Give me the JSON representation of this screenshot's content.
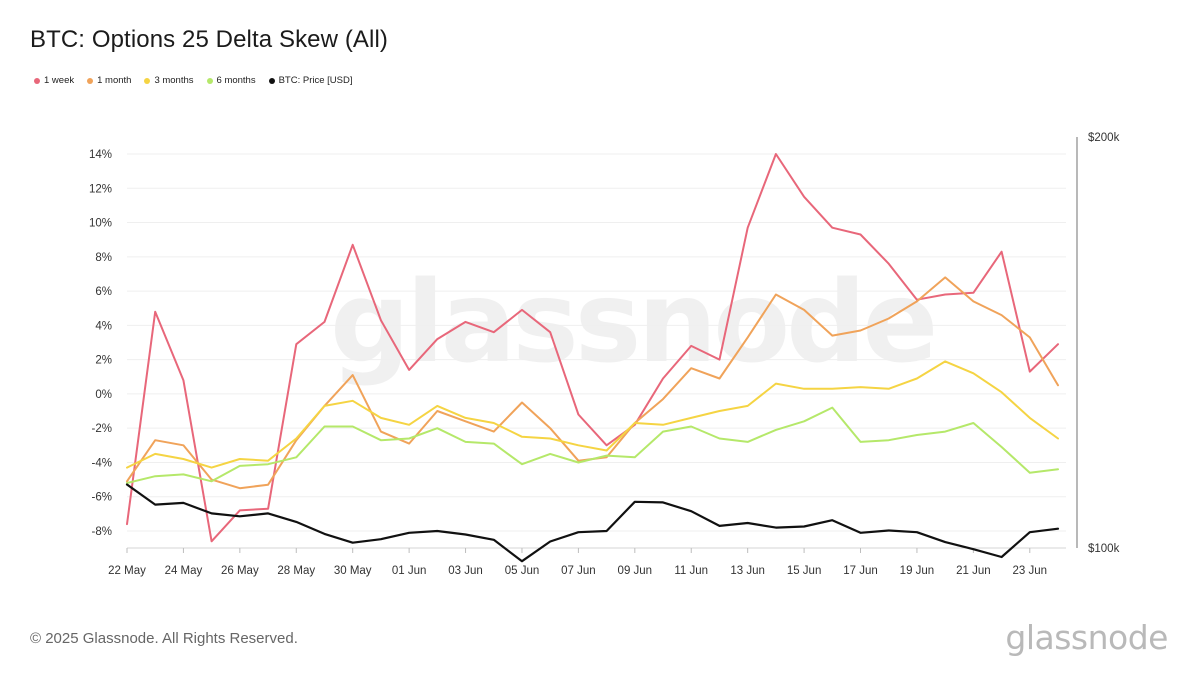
{
  "title": "BTC: Options 25 Delta Skew (All)",
  "footer": "© 2025 Glassnode. All Rights Reserved.",
  "logo_text": "glassnode",
  "watermark_text": "glassnode",
  "legend": [
    {
      "label": "1 week",
      "color": "#e8677a"
    },
    {
      "label": "1 month",
      "color": "#f0a35a"
    },
    {
      "label": "3 months",
      "color": "#f5d443"
    },
    {
      "label": "6 months",
      "color": "#b5e86a"
    },
    {
      "label": "BTC: Price [USD]",
      "color": "#111111"
    }
  ],
  "chart_data": {
    "type": "line",
    "x": [
      "22 May",
      "23 May",
      "24 May",
      "25 May",
      "26 May",
      "27 May",
      "28 May",
      "29 May",
      "30 May",
      "31 May",
      "01 Jun",
      "02 Jun",
      "03 Jun",
      "04 Jun",
      "05 Jun",
      "06 Jun",
      "07 Jun",
      "08 Jun",
      "09 Jun",
      "10 Jun",
      "11 Jun",
      "12 Jun",
      "13 Jun",
      "14 Jun",
      "15 Jun",
      "16 Jun",
      "17 Jun",
      "18 Jun",
      "19 Jun",
      "20 Jun",
      "21 Jun",
      "22 Jun",
      "23 Jun",
      "24 Jun"
    ],
    "x_tick_labels": [
      "22 May",
      "24 May",
      "26 May",
      "28 May",
      "30 May",
      "01 Jun",
      "03 Jun",
      "05 Jun",
      "07 Jun",
      "09 Jun",
      "11 Jun",
      "13 Jun",
      "15 Jun",
      "17 Jun",
      "19 Jun",
      "21 Jun",
      "23 Jun"
    ],
    "y_left": {
      "ticks": [
        "-8%",
        "-6%",
        "-4%",
        "-2%",
        "0%",
        "2%",
        "4%",
        "6%",
        "8%",
        "10%",
        "12%",
        "14%"
      ],
      "range": [
        -9,
        15
      ]
    },
    "y_right": {
      "ticks": [
        "$100k",
        "$200k"
      ],
      "log_scale": true
    },
    "grid": true,
    "legend_position": "top-left",
    "series": [
      {
        "name": "1 week",
        "color": "#e8677a",
        "axis": "left",
        "values": [
          -7.6,
          4.8,
          0.8,
          -8.6,
          -6.8,
          -6.7,
          2.9,
          4.2,
          8.7,
          4.3,
          1.4,
          3.2,
          4.2,
          3.6,
          4.9,
          3.6,
          -1.2,
          -3.0,
          -1.8,
          0.9,
          2.8,
          2.0,
          9.7,
          14.0,
          11.5,
          9.7,
          9.3,
          7.6,
          5.5,
          5.8,
          5.9,
          8.3,
          1.3,
          2.9
        ]
      },
      {
        "name": "1 month",
        "color": "#f0a35a",
        "axis": "left",
        "values": [
          -5.1,
          -2.7,
          -3.0,
          -5.0,
          -5.5,
          -5.3,
          -2.7,
          -0.7,
          1.1,
          -2.2,
          -2.9,
          -1.0,
          -1.6,
          -2.2,
          -0.5,
          -2.0,
          -3.9,
          -3.7,
          -1.7,
          -0.3,
          1.5,
          0.9,
          3.3,
          5.8,
          4.9,
          3.4,
          3.7,
          4.4,
          5.4,
          6.8,
          5.4,
          4.6,
          3.3,
          0.5
        ]
      },
      {
        "name": "3 months",
        "color": "#f5d443",
        "axis": "left",
        "values": [
          -4.3,
          -3.5,
          -3.8,
          -4.3,
          -3.8,
          -3.9,
          -2.6,
          -0.7,
          -0.4,
          -1.4,
          -1.8,
          -0.7,
          -1.4,
          -1.7,
          -2.5,
          -2.6,
          -3.0,
          -3.3,
          -1.7,
          -1.8,
          -1.4,
          -1.0,
          -0.7,
          0.6,
          0.3,
          0.3,
          0.4,
          0.3,
          0.9,
          1.9,
          1.2,
          0.1,
          -1.4,
          -2.6
        ]
      },
      {
        "name": "6 months",
        "color": "#b5e86a",
        "axis": "left",
        "values": [
          -5.2,
          -4.8,
          -4.7,
          -5.1,
          -4.2,
          -4.1,
          -3.7,
          -1.9,
          -1.9,
          -2.7,
          -2.6,
          -2.0,
          -2.8,
          -2.9,
          -4.1,
          -3.5,
          -4.0,
          -3.6,
          -3.7,
          -2.2,
          -1.9,
          -2.6,
          -2.8,
          -2.1,
          -1.6,
          -0.8,
          -2.8,
          -2.7,
          -2.4,
          -2.2,
          -1.7,
          -3.1,
          -4.6,
          -4.4
        ]
      },
      {
        "name": "BTC: Price [USD]",
        "color": "#111111",
        "axis": "right",
        "values": [
          111300,
          107600,
          107900,
          106000,
          105500,
          106000,
          104500,
          102400,
          100900,
          101500,
          102600,
          102900,
          102300,
          101400,
          97800,
          101100,
          102700,
          102900,
          108100,
          108000,
          106400,
          103800,
          104300,
          103500,
          103700,
          104800,
          102600,
          103000,
          102700,
          101000,
          99800,
          98500,
          102700,
          103300
        ]
      }
    ]
  }
}
